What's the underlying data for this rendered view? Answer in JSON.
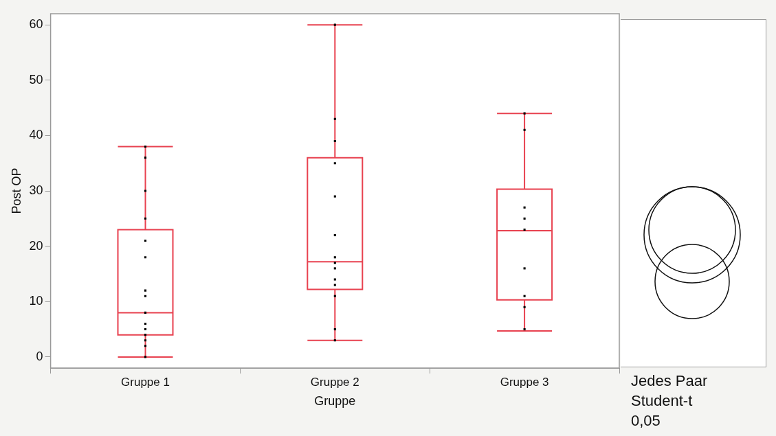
{
  "chart_data": {
    "type": "box",
    "xlabel": "Gruppe",
    "ylabel": "Post OP",
    "categories": [
      "Gruppe 1",
      "Gruppe 2",
      "Gruppe 3"
    ],
    "ylim": [
      -2,
      62
    ],
    "yticks": [
      0,
      10,
      20,
      30,
      40,
      50,
      60
    ],
    "grid": false,
    "legend": false,
    "marker": "square",
    "series": [
      {
        "color": "#e8414f",
        "boxes": [
          {
            "low": 0,
            "q1": 4,
            "median": 8,
            "q3": 23,
            "high": 38
          },
          {
            "low": 3,
            "q1": 12.2,
            "median": 17.2,
            "q3": 36,
            "high": 60
          },
          {
            "low": 4.7,
            "q1": 10.3,
            "median": 22.8,
            "q3": 30.3,
            "high": 44
          }
        ]
      },
      {
        "type": "scatter",
        "color": "#000000",
        "x": [
          "Gruppe 1",
          "Gruppe 1",
          "Gruppe 1",
          "Gruppe 1",
          "Gruppe 1",
          "Gruppe 1",
          "Gruppe 1",
          "Gruppe 1",
          "Gruppe 1",
          "Gruppe 1",
          "Gruppe 1",
          "Gruppe 1",
          "Gruppe 1",
          "Gruppe 1",
          "Gruppe 1",
          "Gruppe 2",
          "Gruppe 2",
          "Gruppe 2",
          "Gruppe 2",
          "Gruppe 2",
          "Gruppe 2",
          "Gruppe 2",
          "Gruppe 2",
          "Gruppe 2",
          "Gruppe 2",
          "Gruppe 2",
          "Gruppe 2",
          "Gruppe 2",
          "Gruppe 2",
          "Gruppe 3",
          "Gruppe 3",
          "Gruppe 3",
          "Gruppe 3",
          "Gruppe 3",
          "Gruppe 3",
          "Gruppe 3",
          "Gruppe 3",
          "Gruppe 3"
        ],
        "values": [
          38,
          36,
          30,
          25,
          21,
          18,
          12,
          11,
          8,
          6,
          5,
          4,
          3,
          2,
          0,
          60,
          43,
          39,
          35,
          29,
          22,
          18,
          17,
          16,
          14,
          13,
          11,
          5,
          3,
          44,
          41,
          27,
          25,
          23,
          16,
          11,
          9,
          5
        ]
      }
    ],
    "annotations": [
      "Jedes Paar",
      "Student-t",
      "0,05"
    ]
  }
}
